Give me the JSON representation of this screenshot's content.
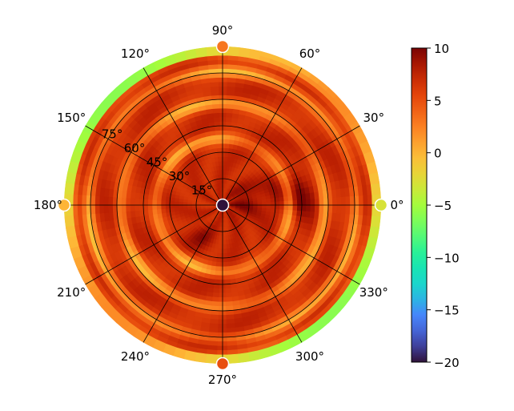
{
  "chart_data": {
    "type": "heatmap",
    "projection": "polar",
    "title": "",
    "angle_ticks": [
      "0°",
      "30°",
      "60°",
      "90°",
      "120°",
      "150°",
      "180°",
      "210°",
      "240°",
      "270°",
      "300°",
      "330°"
    ],
    "angle_tick_values_deg": [
      0,
      30,
      60,
      90,
      120,
      150,
      180,
      210,
      240,
      270,
      300,
      330
    ],
    "radial_ticks": [
      "15°",
      "30°",
      "45°",
      "60°",
      "75°"
    ],
    "radial_tick_values": [
      15,
      30,
      45,
      60,
      75
    ],
    "radial_range": [
      0,
      90
    ],
    "grid": true,
    "colorbar": {
      "colormap": "turbo",
      "range": [
        -20,
        10
      ],
      "ticks": [
        10,
        5,
        0,
        -5,
        -10,
        -15,
        -20
      ],
      "tick_labels": [
        "10",
        "5",
        "0",
        "−5",
        "−10",
        "−15",
        "−20"
      ],
      "placement": "right"
    },
    "field_description_values": {
      "typical_value": 7,
      "hot_spot_value": 10,
      "ring_troughs_at_radius": [
        38,
        58,
        76,
        88
      ],
      "ring_trough_value": 0,
      "edge_value": -2,
      "center_value": -20
    },
    "markers": [
      {
        "angle_deg": 0,
        "value": -3
      },
      {
        "angle_deg": 90,
        "value": 3
      },
      {
        "angle_deg": 180,
        "value": 0
      },
      {
        "angle_deg": 270,
        "value": 5
      },
      {
        "angle_deg": 0,
        "radius": 0,
        "value": -20
      }
    ]
  }
}
